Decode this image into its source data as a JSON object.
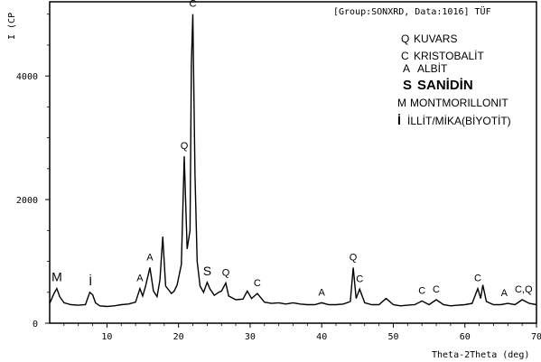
{
  "header": "[Group:SONXRD, Data:1016] TÜF",
  "chart_data": {
    "type": "line",
    "xlabel": "Theta-2Theta (deg)",
    "ylabel": "I (CP",
    "xlim": [
      2,
      70
    ],
    "ylim": [
      0,
      5200
    ],
    "x_ticks": [
      10,
      20,
      30,
      40,
      50,
      60,
      70
    ],
    "y_ticks": [
      0,
      2000,
      4000
    ],
    "grid": false,
    "line_color": "#000000",
    "series": [
      {
        "points": [
          [
            2.0,
            320
          ],
          [
            2.6,
            480
          ],
          [
            3.0,
            560
          ],
          [
            3.4,
            430
          ],
          [
            4.0,
            330
          ],
          [
            5.0,
            300
          ],
          [
            6.0,
            290
          ],
          [
            7.0,
            300
          ],
          [
            7.6,
            500
          ],
          [
            8.0,
            460
          ],
          [
            8.4,
            330
          ],
          [
            9.0,
            280
          ],
          [
            10.0,
            270
          ],
          [
            11.0,
            280
          ],
          [
            12.0,
            300
          ],
          [
            13.0,
            310
          ],
          [
            14.0,
            340
          ],
          [
            14.6,
            560
          ],
          [
            15.0,
            440
          ],
          [
            15.4,
            600
          ],
          [
            16.0,
            900
          ],
          [
            16.5,
            520
          ],
          [
            17.0,
            430
          ],
          [
            17.4,
            700
          ],
          [
            17.8,
            1400
          ],
          [
            18.2,
            600
          ],
          [
            18.6,
            540
          ],
          [
            19.0,
            480
          ],
          [
            19.4,
            520
          ],
          [
            19.8,
            620
          ],
          [
            20.4,
            950
          ],
          [
            20.8,
            2700
          ],
          [
            21.2,
            1200
          ],
          [
            21.6,
            1500
          ],
          [
            21.8,
            4200
          ],
          [
            22.0,
            5000
          ],
          [
            22.3,
            2400
          ],
          [
            22.6,
            1000
          ],
          [
            23.0,
            600
          ],
          [
            23.5,
            500
          ],
          [
            24.0,
            660
          ],
          [
            24.4,
            550
          ],
          [
            25.0,
            450
          ],
          [
            25.6,
            500
          ],
          [
            26.0,
            520
          ],
          [
            26.6,
            650
          ],
          [
            27.0,
            440
          ],
          [
            28.0,
            380
          ],
          [
            29.0,
            390
          ],
          [
            29.6,
            520
          ],
          [
            30.2,
            400
          ],
          [
            31.0,
            480
          ],
          [
            32.0,
            340
          ],
          [
            33.0,
            320
          ],
          [
            34.0,
            330
          ],
          [
            35.0,
            310
          ],
          [
            36.0,
            330
          ],
          [
            37.0,
            310
          ],
          [
            38.0,
            300
          ],
          [
            39.0,
            300
          ],
          [
            40.0,
            330
          ],
          [
            41.0,
            300
          ],
          [
            42.0,
            300
          ],
          [
            43.0,
            310
          ],
          [
            44.0,
            350
          ],
          [
            44.4,
            900
          ],
          [
            44.8,
            400
          ],
          [
            45.3,
            550
          ],
          [
            46.0,
            330
          ],
          [
            47.0,
            300
          ],
          [
            48.0,
            300
          ],
          [
            49.0,
            400
          ],
          [
            50.0,
            300
          ],
          [
            51.0,
            280
          ],
          [
            52.0,
            290
          ],
          [
            53.0,
            300
          ],
          [
            54.0,
            360
          ],
          [
            55.0,
            300
          ],
          [
            56.0,
            380
          ],
          [
            57.0,
            300
          ],
          [
            58.0,
            280
          ],
          [
            59.0,
            290
          ],
          [
            60.0,
            300
          ],
          [
            61.0,
            320
          ],
          [
            61.8,
            560
          ],
          [
            62.2,
            400
          ],
          [
            62.5,
            620
          ],
          [
            63.0,
            350
          ],
          [
            64.0,
            300
          ],
          [
            65.0,
            300
          ],
          [
            66.0,
            320
          ],
          [
            67.0,
            300
          ],
          [
            68.0,
            380
          ],
          [
            69.0,
            320
          ],
          [
            70.0,
            300
          ]
        ]
      }
    ],
    "legend": {
      "position": "top-right",
      "entries": [
        {
          "code": "Q",
          "name": "KUVARS"
        },
        {
          "code": "C",
          "name": "KRISTOBALİT"
        },
        {
          "code": "A",
          "name": "ALBİT"
        },
        {
          "code": "S",
          "name": "SANİDİN"
        },
        {
          "code": "M",
          "name": "MONTMORILLONIT"
        },
        {
          "code": "İ",
          "name": "İLLİT/MİKA(BİYOTİT)"
        }
      ]
    },
    "peak_labels": [
      {
        "label": "M",
        "x": 3.0,
        "y": 560
      },
      {
        "label": "İ",
        "x": 7.7,
        "y": 500
      },
      {
        "label": "A",
        "x": 14.6,
        "y": 560
      },
      {
        "label": "A",
        "x": 16.0,
        "y": 900
      },
      {
        "label": "Q",
        "x": 20.8,
        "y": 2700
      },
      {
        "label": "C",
        "x": 22.0,
        "y": 5000
      },
      {
        "label": "S",
        "x": 24.0,
        "y": 660
      },
      {
        "label": "Q",
        "x": 26.6,
        "y": 650
      },
      {
        "label": "C",
        "x": 31.0,
        "y": 480
      },
      {
        "label": "A",
        "x": 40.0,
        "y": 330
      },
      {
        "label": "Q",
        "x": 44.4,
        "y": 900
      },
      {
        "label": "C",
        "x": 45.3,
        "y": 550
      },
      {
        "label": "C",
        "x": 54.0,
        "y": 360
      },
      {
        "label": "C",
        "x": 56.0,
        "y": 380
      },
      {
        "label": "C",
        "x": 61.8,
        "y": 560
      },
      {
        "label": "A",
        "x": 65.5,
        "y": 320
      },
      {
        "label": "C,Q",
        "x": 68.2,
        "y": 380
      }
    ]
  }
}
